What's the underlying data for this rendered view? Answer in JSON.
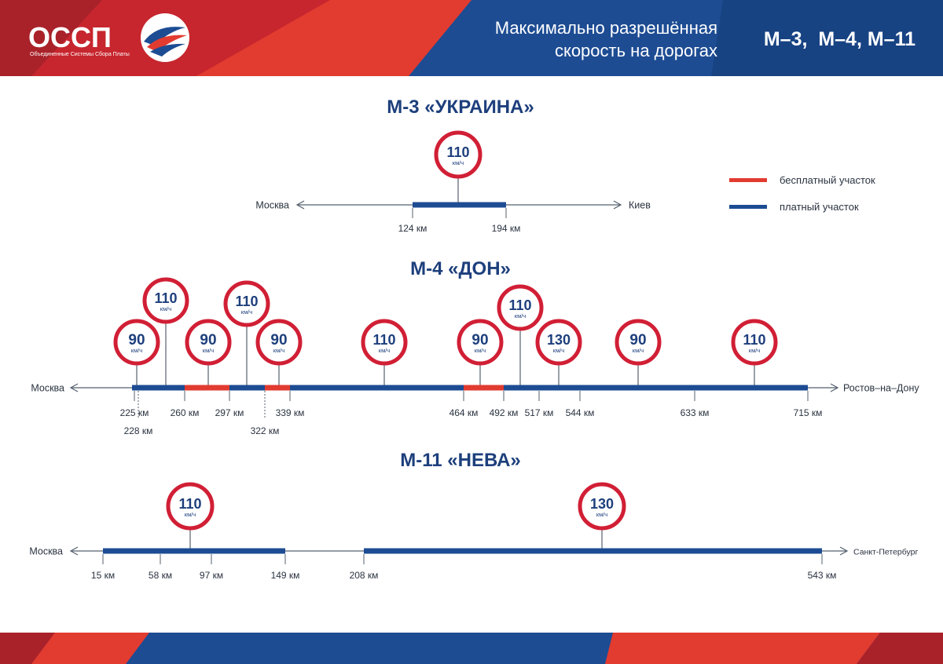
{
  "header": {
    "logo_text": "ОССП",
    "logo_subtitle": "Объединенные Системы Сбора Платы",
    "title_line1": "Максимально разрешённая",
    "title_line2": "скорость на дорогах",
    "roads": "М–3,  М–4, М–11"
  },
  "legend": {
    "free_label": "бесплатный участок",
    "paid_label": "платный участок"
  },
  "colors": {
    "red": "#e23b30",
    "blue": "#1d4c93",
    "navy": "#1d3f7c",
    "sign_border": "#d11f35"
  },
  "unit": "км/ч",
  "roads": [
    {
      "title": "М-3 «УКРАИНА»",
      "start_city": "Москва",
      "end_city": "Киев",
      "segments": [
        {
          "from": 124,
          "to": 194,
          "type": "paid"
        }
      ],
      "markers": [
        {
          "label": "124 км"
        },
        {
          "label": "194 км"
        }
      ],
      "signs": [
        {
          "speed": "110"
        }
      ]
    },
    {
      "title": "М-4 «ДОН»",
      "start_city": "Москва",
      "end_city": "Ростов–на–Дону",
      "segments": [
        {
          "from": 225,
          "to": 260,
          "type": "paid"
        },
        {
          "from": 260,
          "to": 297,
          "type": "free"
        },
        {
          "from": 297,
          "to": 322,
          "type": "paid"
        },
        {
          "from": 322,
          "to": 339,
          "type": "free"
        },
        {
          "from": 339,
          "to": 464,
          "type": "paid"
        },
        {
          "from": 464,
          "to": 492,
          "type": "free"
        },
        {
          "from": 492,
          "to": 715,
          "type": "paid"
        }
      ],
      "markers": [
        {
          "label": "225 км"
        },
        {
          "label": "228 км"
        },
        {
          "label": "260 км"
        },
        {
          "label": "297 км"
        },
        {
          "label": "322 км"
        },
        {
          "label": "339 км"
        },
        {
          "label": "464 км"
        },
        {
          "label": "492 км"
        },
        {
          "label": "517 км"
        },
        {
          "label": "544 км"
        },
        {
          "label": "633 км"
        },
        {
          "label": "715 км"
        }
      ],
      "signs": [
        {
          "speed": "90"
        },
        {
          "speed": "110"
        },
        {
          "speed": "90"
        },
        {
          "speed": "110"
        },
        {
          "speed": "90"
        },
        {
          "speed": "110"
        },
        {
          "speed": "90"
        },
        {
          "speed": "110"
        },
        {
          "speed": "130"
        },
        {
          "speed": "90"
        },
        {
          "speed": "110"
        }
      ]
    },
    {
      "title": "М-11 «НЕВА»",
      "start_city": "Москва",
      "end_city": "Санкт-Петербург",
      "segments": [
        {
          "from": 15,
          "to": 149,
          "type": "paid"
        },
        {
          "from": 208,
          "to": 543,
          "type": "paid"
        }
      ],
      "markers": [
        {
          "label": "15 км"
        },
        {
          "label": "58 км"
        },
        {
          "label": "97 км"
        },
        {
          "label": "149 км"
        },
        {
          "label": "208 км"
        },
        {
          "label": "543 км"
        }
      ],
      "signs": [
        {
          "speed": "110"
        },
        {
          "speed": "130"
        }
      ]
    }
  ]
}
